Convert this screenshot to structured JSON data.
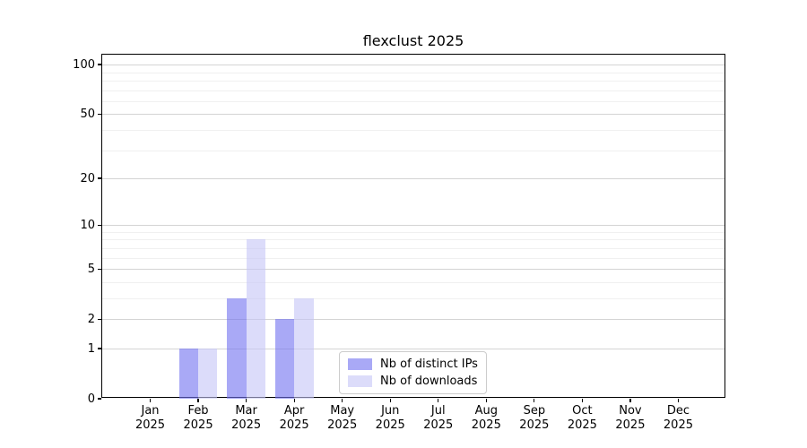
{
  "title": "flexclust 2025",
  "chart_data": {
    "type": "bar",
    "title": "flexclust 2025",
    "categories": [
      "Jan",
      "Feb",
      "Mar",
      "Apr",
      "May",
      "Jun",
      "Jul",
      "Aug",
      "Sep",
      "Oct",
      "Nov",
      "Dec"
    ],
    "year_label": "2025",
    "series": [
      {
        "name": "Nb of distinct IPs",
        "color": "#7070f0",
        "alpha": 0.6,
        "color_on_white": "#a9a9f5",
        "values": [
          0,
          1,
          3,
          2,
          0,
          0,
          0,
          0,
          0,
          0,
          0,
          0
        ]
      },
      {
        "name": "Nb of downloads",
        "color": "#c5c5f7",
        "alpha": 0.6,
        "color_on_white": "#dcdcf9",
        "values": [
          0,
          1,
          8,
          3,
          0,
          0,
          0,
          0,
          0,
          0,
          0,
          0
        ]
      }
    ],
    "y_scale": "log1p",
    "y_major_ticks": [
      0,
      1,
      2,
      5,
      10,
      20,
      50,
      100
    ],
    "y_minor_ticks": [
      3,
      4,
      6,
      7,
      8,
      9,
      30,
      40,
      60,
      70,
      80,
      90
    ],
    "ylim": [
      0,
      110
    ],
    "xlabel": "",
    "ylabel": "",
    "grid": "horizontal",
    "grid_major_color": "#d4d4d4",
    "grid_minor_color": "#f0f0f0",
    "legend_position": "lower center",
    "axis_color": "#000000",
    "background_color": "#ffffff"
  },
  "legend": {
    "items": [
      {
        "label": "Nb of distinct IPs"
      },
      {
        "label": "Nb of downloads"
      }
    ]
  }
}
